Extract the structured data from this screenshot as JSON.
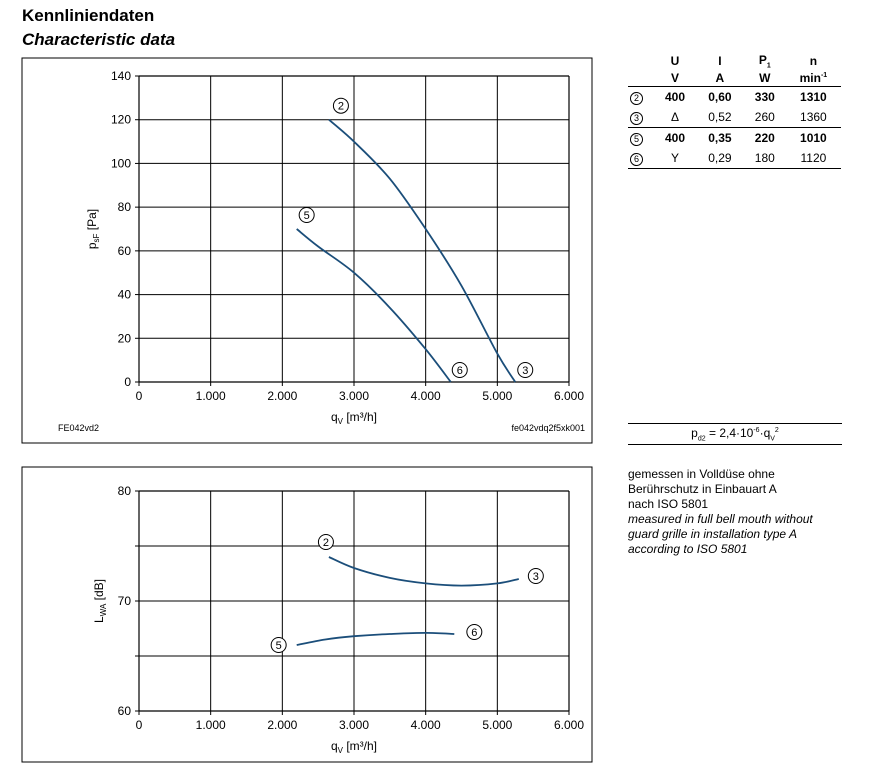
{
  "header": {
    "title_de": "Kennliniendaten",
    "title_en": "Characteristic data"
  },
  "chart_data": [
    {
      "type": "line",
      "ylabel": "p",
      "ylabel_sub": "sF",
      "ylabel_unit": " [Pa]",
      "xlabel": "q",
      "xlabel_sub": "V",
      "xlabel_unit": " [m³/h]",
      "xlim": [
        0,
        6000
      ],
      "ylim": [
        0,
        140
      ],
      "x_ticks": [
        0,
        1000,
        2000,
        3000,
        4000,
        5000,
        6000
      ],
      "x_tick_labels": [
        "0",
        "1.000",
        "2.000",
        "3.000",
        "4.000",
        "5.000",
        "6.000"
      ],
      "y_ticks": [
        0,
        20,
        40,
        60,
        80,
        100,
        120,
        140
      ],
      "y_tick_labels": [
        "0",
        "20",
        "40",
        "60",
        "80",
        "100",
        "120",
        "140"
      ],
      "grid": true,
      "footer_left": "FE042vd2",
      "footer_right": "fe042vdq2f5xk001",
      "series": [
        {
          "name": "2",
          "end_name": "3",
          "color": "#1b4e7a",
          "x": [
            2650,
            3000,
            3500,
            4000,
            4500,
            5000,
            5250
          ],
          "y": [
            120,
            110,
            93,
            70,
            44,
            13,
            0
          ]
        },
        {
          "name": "5",
          "end_name": "6",
          "color": "#1b4e7a",
          "x": [
            2200,
            2500,
            3000,
            3500,
            4000,
            4350
          ],
          "y": [
            70,
            62,
            50,
            34,
            15,
            0
          ]
        }
      ]
    },
    {
      "type": "line",
      "ylabel": "L",
      "ylabel_sub": "WA",
      "ylabel_unit": " [dB]",
      "xlabel": "q",
      "xlabel_sub": "V",
      "xlabel_unit": " [m³/h]",
      "xlim": [
        0,
        6000
      ],
      "ylim": [
        60,
        80
      ],
      "x_ticks": [
        0,
        1000,
        2000,
        3000,
        4000,
        5000,
        6000
      ],
      "x_tick_labels": [
        "0",
        "1.000",
        "2.000",
        "3.000",
        "4.000",
        "5.000",
        "6.000"
      ],
      "y_ticks": [
        60,
        65,
        70,
        75,
        80
      ],
      "y_tick_labels": [
        "60",
        "",
        "70",
        "",
        "80"
      ],
      "grid": true,
      "series": [
        {
          "name": "2",
          "end_name": "3",
          "color": "#1b4e7a",
          "x": [
            2650,
            3000,
            3500,
            4000,
            4500,
            5000,
            5300
          ],
          "y": [
            74.0,
            73.0,
            72.1,
            71.6,
            71.4,
            71.6,
            72.0
          ]
        },
        {
          "name": "5",
          "end_name": "6",
          "color": "#1b4e7a",
          "x": [
            2200,
            2600,
            3000,
            3500,
            4000,
            4400
          ],
          "y": [
            66.0,
            66.5,
            66.8,
            67.0,
            67.1,
            67.0
          ]
        }
      ]
    }
  ],
  "spec_table": {
    "headers": [
      "U",
      "I",
      "P",
      "n"
    ],
    "p_sub": "1",
    "units": [
      "V",
      "A",
      "W",
      "min"
    ],
    "n_unit_sup": "-1",
    "rows": [
      {
        "marker": "2",
        "U": "400",
        "I": "0,60",
        "P": "330",
        "n": "1310",
        "bold": true
      },
      {
        "marker": "3",
        "U": "Δ",
        "I": "0,52",
        "P": "260",
        "n": "1360",
        "bold": false
      },
      {
        "marker": "5",
        "U": "400",
        "I": "0,35",
        "P": "220",
        "n": "1010",
        "bold": true
      },
      {
        "marker": "6",
        "U": "Y",
        "I": "0,29",
        "P": "180",
        "n": "1120",
        "bold": false
      }
    ]
  },
  "formula": {
    "lhs": "p",
    "lhs_sub": "d2",
    "mid": " = 2,4·10",
    "exp": "-6",
    "rhs": "·q",
    "rhs_sub": "V",
    "rhs_sup": "2"
  },
  "note": {
    "de_line1": "gemessen in Volldüse ohne",
    "de_line2": "Berührschutz in Einbauart A",
    "de_line3": "nach ISO 5801",
    "en_line1": "measured in full bell mouth without",
    "en_line2": "guard grille in installation type A",
    "en_line3": "according to ISO 5801"
  }
}
